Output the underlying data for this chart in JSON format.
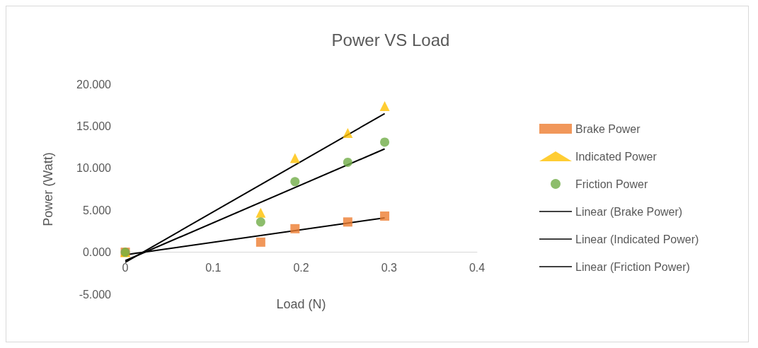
{
  "chart_data": {
    "type": "scatter",
    "title": "Power VS Load",
    "xlabel": "Load (N)",
    "ylabel": "Power (Watt)",
    "xlim": [
      0,
      0.4
    ],
    "xticks": [
      0,
      0.1,
      0.2,
      0.3,
      0.4
    ],
    "ylim": [
      -5,
      20
    ],
    "yticks": [
      {
        "value": -5,
        "label": "-5.000"
      },
      {
        "value": 0,
        "label": "0.000"
      },
      {
        "value": 5,
        "label": "5.000"
      },
      {
        "value": 10,
        "label": "10.000"
      },
      {
        "value": 15,
        "label": "15.000"
      },
      {
        "value": 20,
        "label": "20.000"
      }
    ],
    "grid": false,
    "legend": "right",
    "series": [
      {
        "name": "Brake Power",
        "type": "scatter",
        "marker": "square",
        "color": "#ed7d31",
        "x": [
          0,
          0.154,
          0.193,
          0.253,
          0.295
        ],
        "values": [
          0,
          1.2,
          2.8,
          3.6,
          4.3
        ]
      },
      {
        "name": "Indicated Power",
        "type": "scatter",
        "marker": "triangle",
        "color": "#ffc000",
        "x": [
          0,
          0.154,
          0.193,
          0.253,
          0.295
        ],
        "values": [
          0,
          4.7,
          11.2,
          14.2,
          17.4
        ]
      },
      {
        "name": "Friction Power",
        "type": "scatter",
        "marker": "circle",
        "color": "#70ad47",
        "x": [
          0,
          0.154,
          0.193,
          0.253,
          0.295
        ],
        "values": [
          0,
          3.6,
          8.4,
          10.7,
          13.1
        ]
      },
      {
        "name": "Linear (Brake Power)",
        "type": "line",
        "marker": "none",
        "color": "#000000",
        "x": [
          0,
          0.295
        ],
        "values": [
          -0.3,
          4.1
        ]
      },
      {
        "name": "Linear (Indicated Power)",
        "type": "line",
        "marker": "none",
        "color": "#000000",
        "x": [
          0,
          0.295
        ],
        "values": [
          -1.2,
          16.5
        ]
      },
      {
        "name": "Linear (Friction Power)",
        "type": "line",
        "marker": "none",
        "color": "#000000",
        "x": [
          0,
          0.295
        ],
        "values": [
          -1.0,
          12.3
        ]
      }
    ]
  }
}
